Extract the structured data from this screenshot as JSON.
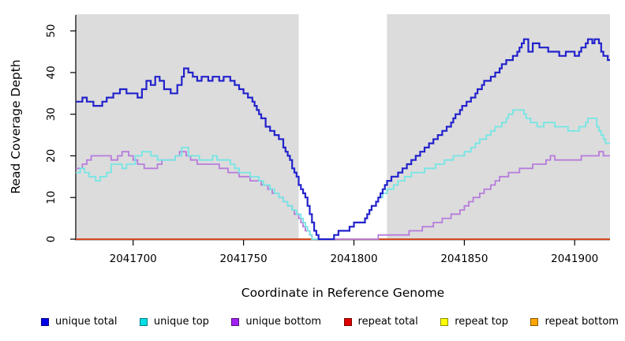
{
  "chart_data": {
    "type": "line",
    "step": true,
    "title": "",
    "xlabel": "Coordinate in Reference Genome",
    "ylabel": "Read Coverage Depth",
    "xlim": [
      2041674,
      2041916
    ],
    "ylim": [
      0,
      54
    ],
    "xticks": [
      2041700,
      2041750,
      2041800,
      2041850,
      2041900
    ],
    "yticks": [
      0,
      10,
      20,
      30,
      40,
      50
    ],
    "grid": false,
    "legend_position": "bottom",
    "background": {
      "figure": "#FFFFFF",
      "plot": "#DCDCDC"
    },
    "axis_color": "#000000",
    "highlight_region": {
      "x_start": 2041775,
      "x_end": 2041815,
      "color": "#FFFFFF"
    },
    "series": [
      {
        "name": "unique total",
        "color": "#2222CC",
        "legend_color": "#0000E8",
        "line_width": 2.2,
        "points": [
          [
            2041674,
            33
          ],
          [
            2041677,
            34
          ],
          [
            2041679,
            33
          ],
          [
            2041682,
            32
          ],
          [
            2041686,
            33
          ],
          [
            2041688,
            34
          ],
          [
            2041691,
            35
          ],
          [
            2041694,
            36
          ],
          [
            2041697,
            35
          ],
          [
            2041702,
            34
          ],
          [
            2041704,
            36
          ],
          [
            2041706,
            38
          ],
          [
            2041708,
            37
          ],
          [
            2041710,
            39
          ],
          [
            2041712,
            38
          ],
          [
            2041714,
            36
          ],
          [
            2041717,
            35
          ],
          [
            2041720,
            37
          ],
          [
            2041722,
            39
          ],
          [
            2041723,
            41
          ],
          [
            2041725,
            40
          ],
          [
            2041727,
            39
          ],
          [
            2041729,
            38
          ],
          [
            2041731,
            39
          ],
          [
            2041734,
            38
          ],
          [
            2041736,
            39
          ],
          [
            2041739,
            38
          ],
          [
            2041741,
            39
          ],
          [
            2041744,
            38
          ],
          [
            2041746,
            37
          ],
          [
            2041748,
            36
          ],
          [
            2041750,
            35
          ],
          [
            2041752,
            34
          ],
          [
            2041754,
            33
          ],
          [
            2041755,
            32
          ],
          [
            2041756,
            31
          ],
          [
            2041757,
            30
          ],
          [
            2041758,
            29
          ],
          [
            2041760,
            27
          ],
          [
            2041762,
            26
          ],
          [
            2041764,
            25
          ],
          [
            2041766,
            24
          ],
          [
            2041768,
            22
          ],
          [
            2041769,
            21
          ],
          [
            2041770,
            20
          ],
          [
            2041771,
            19
          ],
          [
            2041772,
            17
          ],
          [
            2041773,
            16
          ],
          [
            2041774,
            15
          ],
          [
            2041775,
            13
          ],
          [
            2041776,
            12
          ],
          [
            2041777,
            11
          ],
          [
            2041778,
            10
          ],
          [
            2041779,
            8
          ],
          [
            2041780,
            6
          ],
          [
            2041781,
            4
          ],
          [
            2041782,
            2
          ],
          [
            2041783,
            1
          ],
          [
            2041784,
            0
          ],
          [
            2041791,
            1
          ],
          [
            2041793,
            2
          ],
          [
            2041798,
            3
          ],
          [
            2041800,
            4
          ],
          [
            2041805,
            5
          ],
          [
            2041806,
            6
          ],
          [
            2041807,
            7
          ],
          [
            2041808,
            8
          ],
          [
            2041810,
            9
          ],
          [
            2041811,
            10
          ],
          [
            2041812,
            11
          ],
          [
            2041813,
            12
          ],
          [
            2041814,
            13
          ],
          [
            2041815,
            14
          ],
          [
            2041817,
            15
          ],
          [
            2041820,
            16
          ],
          [
            2041822,
            17
          ],
          [
            2041824,
            18
          ],
          [
            2041826,
            19
          ],
          [
            2041828,
            20
          ],
          [
            2041830,
            21
          ],
          [
            2041832,
            22
          ],
          [
            2041834,
            23
          ],
          [
            2041836,
            24
          ],
          [
            2041838,
            25
          ],
          [
            2041840,
            26
          ],
          [
            2041842,
            27
          ],
          [
            2041844,
            28
          ],
          [
            2041845,
            29
          ],
          [
            2041846,
            30
          ],
          [
            2041848,
            31
          ],
          [
            2041849,
            32
          ],
          [
            2041851,
            33
          ],
          [
            2041853,
            34
          ],
          [
            2041855,
            35
          ],
          [
            2041856,
            36
          ],
          [
            2041858,
            37
          ],
          [
            2041859,
            38
          ],
          [
            2041862,
            39
          ],
          [
            2041864,
            40
          ],
          [
            2041866,
            41
          ],
          [
            2041867,
            42
          ],
          [
            2041869,
            43
          ],
          [
            2041872,
            44
          ],
          [
            2041874,
            45
          ],
          [
            2041875,
            46
          ],
          [
            2041876,
            47
          ],
          [
            2041877,
            48
          ],
          [
            2041879,
            45
          ],
          [
            2041881,
            47
          ],
          [
            2041884,
            46
          ],
          [
            2041888,
            45
          ],
          [
            2041893,
            44
          ],
          [
            2041896,
            45
          ],
          [
            2041900,
            44
          ],
          [
            2041902,
            45
          ],
          [
            2041903,
            46
          ],
          [
            2041905,
            47
          ],
          [
            2041906,
            48
          ],
          [
            2041908,
            47
          ],
          [
            2041909,
            48
          ],
          [
            2041911,
            47
          ],
          [
            2041912,
            45
          ],
          [
            2041913,
            44
          ],
          [
            2041915,
            43
          ]
        ]
      },
      {
        "name": "unique top",
        "color": "#74E6E4",
        "legend_color": "#00E0E6",
        "line_width": 1.8,
        "points": [
          [
            2041674,
            16
          ],
          [
            2041676,
            17
          ],
          [
            2041678,
            16
          ],
          [
            2041680,
            15
          ],
          [
            2041683,
            14
          ],
          [
            2041685,
            15
          ],
          [
            2041688,
            16
          ],
          [
            2041690,
            18
          ],
          [
            2041695,
            17
          ],
          [
            2041697,
            18
          ],
          [
            2041701,
            20
          ],
          [
            2041704,
            21
          ],
          [
            2041708,
            20
          ],
          [
            2041711,
            19
          ],
          [
            2041719,
            20
          ],
          [
            2041722,
            22
          ],
          [
            2041725,
            20
          ],
          [
            2041730,
            19
          ],
          [
            2041736,
            20
          ],
          [
            2041738,
            19
          ],
          [
            2041744,
            18
          ],
          [
            2041746,
            17
          ],
          [
            2041748,
            16
          ],
          [
            2041753,
            15
          ],
          [
            2041757,
            14
          ],
          [
            2041759,
            13
          ],
          [
            2041762,
            12
          ],
          [
            2041764,
            11
          ],
          [
            2041766,
            10
          ],
          [
            2041768,
            9
          ],
          [
            2041770,
            8
          ],
          [
            2041772,
            7
          ],
          [
            2041774,
            6
          ],
          [
            2041776,
            5
          ],
          [
            2041777,
            4
          ],
          [
            2041778,
            3
          ],
          [
            2041779,
            2
          ],
          [
            2041780,
            1
          ],
          [
            2041781,
            0
          ],
          [
            2041791,
            1
          ],
          [
            2041793,
            2
          ],
          [
            2041798,
            3
          ],
          [
            2041800,
            4
          ],
          [
            2041805,
            5
          ],
          [
            2041806,
            6
          ],
          [
            2041807,
            7
          ],
          [
            2041808,
            8
          ],
          [
            2041810,
            9
          ],
          [
            2041811,
            10
          ],
          [
            2041813,
            11
          ],
          [
            2041815,
            12
          ],
          [
            2041818,
            13
          ],
          [
            2041820,
            14
          ],
          [
            2041823,
            15
          ],
          [
            2041826,
            16
          ],
          [
            2041832,
            17
          ],
          [
            2041837,
            18
          ],
          [
            2041841,
            19
          ],
          [
            2041845,
            20
          ],
          [
            2041850,
            21
          ],
          [
            2041853,
            22
          ],
          [
            2041855,
            23
          ],
          [
            2041857,
            24
          ],
          [
            2041860,
            25
          ],
          [
            2041862,
            26
          ],
          [
            2041864,
            27
          ],
          [
            2041867,
            28
          ],
          [
            2041869,
            29
          ],
          [
            2041870,
            30
          ],
          [
            2041872,
            31
          ],
          [
            2041877,
            30
          ],
          [
            2041878,
            29
          ],
          [
            2041880,
            28
          ],
          [
            2041883,
            27
          ],
          [
            2041886,
            28
          ],
          [
            2041891,
            27
          ],
          [
            2041897,
            26
          ],
          [
            2041902,
            27
          ],
          [
            2041905,
            28
          ],
          [
            2041906,
            29
          ],
          [
            2041910,
            27
          ],
          [
            2041911,
            26
          ],
          [
            2041912,
            25
          ],
          [
            2041913,
            24
          ],
          [
            2041914,
            23
          ]
        ]
      },
      {
        "name": "unique bottom",
        "color": "#B67CDC",
        "legend_color": "#A020F0",
        "line_width": 1.8,
        "points": [
          [
            2041674,
            17
          ],
          [
            2041677,
            18
          ],
          [
            2041679,
            19
          ],
          [
            2041681,
            20
          ],
          [
            2041690,
            19
          ],
          [
            2041693,
            20
          ],
          [
            2041695,
            21
          ],
          [
            2041698,
            20
          ],
          [
            2041700,
            19
          ],
          [
            2041702,
            18
          ],
          [
            2041705,
            17
          ],
          [
            2041711,
            18
          ],
          [
            2041713,
            19
          ],
          [
            2041719,
            20
          ],
          [
            2041721,
            21
          ],
          [
            2041724,
            20
          ],
          [
            2041726,
            19
          ],
          [
            2041729,
            18
          ],
          [
            2041739,
            17
          ],
          [
            2041743,
            16
          ],
          [
            2041748,
            15
          ],
          [
            2041753,
            14
          ],
          [
            2041758,
            13
          ],
          [
            2041761,
            12
          ],
          [
            2041763,
            11
          ],
          [
            2041766,
            10
          ],
          [
            2041768,
            9
          ],
          [
            2041770,
            8
          ],
          [
            2041772,
            7
          ],
          [
            2041773,
            6
          ],
          [
            2041775,
            5
          ],
          [
            2041776,
            4
          ],
          [
            2041777,
            3
          ],
          [
            2041778,
            2
          ],
          [
            2041780,
            1
          ],
          [
            2041781,
            0
          ],
          [
            2041811,
            1
          ],
          [
            2041825,
            2
          ],
          [
            2041831,
            3
          ],
          [
            2041836,
            4
          ],
          [
            2041840,
            5
          ],
          [
            2041844,
            6
          ],
          [
            2041848,
            7
          ],
          [
            2041850,
            8
          ],
          [
            2041852,
            9
          ],
          [
            2041854,
            10
          ],
          [
            2041857,
            11
          ],
          [
            2041859,
            12
          ],
          [
            2041862,
            13
          ],
          [
            2041864,
            14
          ],
          [
            2041866,
            15
          ],
          [
            2041870,
            16
          ],
          [
            2041875,
            17
          ],
          [
            2041881,
            18
          ],
          [
            2041887,
            19
          ],
          [
            2041889,
            20
          ],
          [
            2041891,
            19
          ],
          [
            2041903,
            20
          ],
          [
            2041911,
            21
          ],
          [
            2041913,
            20
          ]
        ]
      },
      {
        "name": "repeat total",
        "color": "#CC2222",
        "legend_color": "#E00000",
        "line_width": 1.6,
        "points": [
          [
            2041674,
            0
          ],
          [
            2041916,
            0
          ]
        ]
      },
      {
        "name": "repeat top",
        "color": "#EEEE33",
        "legend_color": "#FFFF00",
        "line_width": 1.6,
        "points": [
          [
            2041674,
            0
          ],
          [
            2041916,
            0
          ]
        ]
      },
      {
        "name": "repeat bottom",
        "color": "#FF9800",
        "legend_color": "#FFA500",
        "line_width": 2,
        "points": [
          [
            2041674,
            0
          ],
          [
            2041916,
            0
          ]
        ]
      }
    ]
  }
}
